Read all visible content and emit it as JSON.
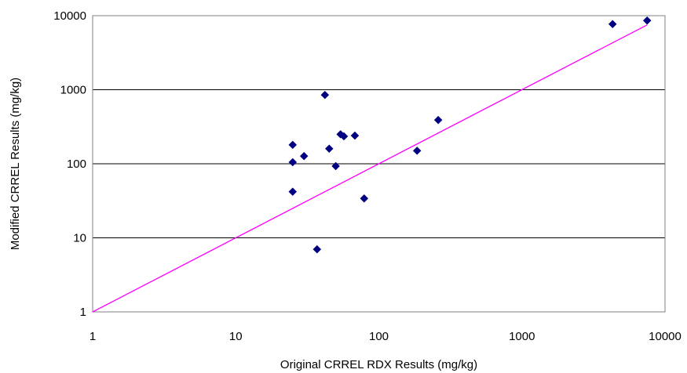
{
  "chart_data": {
    "type": "scatter",
    "title": "",
    "xlabel": "Original CRREL RDX Results (mg/kg)",
    "ylabel": "Modified CRREL Results (mg/kg)",
    "xscale": "log",
    "yscale": "log",
    "xlim": [
      1,
      10000
    ],
    "ylim": [
      1,
      10000
    ],
    "x_ticks": [
      "1",
      "10",
      "100",
      "1000",
      "10000"
    ],
    "y_ticks": [
      "1",
      "10",
      "100",
      "1000",
      "10000"
    ],
    "grid": "horizontal major gridlines",
    "legend": "none",
    "series": [
      {
        "marker": "diamond",
        "color": "#000080",
        "points": [
          {
            "x": 25,
            "y": 180
          },
          {
            "x": 25,
            "y": 105
          },
          {
            "x": 25,
            "y": 42
          },
          {
            "x": 30,
            "y": 127
          },
          {
            "x": 37,
            "y": 7
          },
          {
            "x": 42,
            "y": 850
          },
          {
            "x": 45,
            "y": 160
          },
          {
            "x": 50,
            "y": 93
          },
          {
            "x": 54,
            "y": 250
          },
          {
            "x": 57,
            "y": 235
          },
          {
            "x": 68,
            "y": 240
          },
          {
            "x": 79,
            "y": 34
          },
          {
            "x": 185,
            "y": 150
          },
          {
            "x": 260,
            "y": 390
          },
          {
            "x": 4300,
            "y": 7700
          },
          {
            "x": 7500,
            "y": 8600
          }
        ]
      },
      {
        "type": "line",
        "color": "#ff00ff",
        "x": [
          1,
          7500
        ],
        "y": [
          1,
          7500
        ]
      }
    ]
  }
}
